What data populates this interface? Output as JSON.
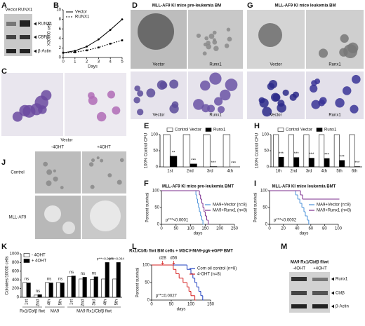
{
  "figure": {
    "panel_letters": [
      "A",
      "B",
      "C",
      "D",
      "E",
      "F",
      "G",
      "H",
      "I",
      "J",
      "K",
      "L",
      "M"
    ],
    "blot_a": {
      "lanes": [
        "Vector",
        "RUNX1"
      ],
      "bands": [
        "RUNX1",
        "CBFβ",
        "β-Actin"
      ]
    },
    "photo_c": {
      "caption": "Vector"
    },
    "photo_d": {
      "title": "MLL-AF9 KI mice pre-leukemia BM",
      "captions": [
        "Vector",
        "Runx1",
        "Vector",
        "Runx1"
      ]
    },
    "photo_g": {
      "title": "MLL-AF9 KI mice leukemia BM",
      "captions": [
        "Vector",
        "Runx1",
        "Vector",
        "Runx1"
      ]
    },
    "photo_j": {
      "columns": [
        "-4OHT",
        "+4OHT"
      ],
      "rows": [
        "Control",
        "MLL-AF9"
      ]
    },
    "blot_m": {
      "title": "MA9 Rx1/Cbfβ fl/wt",
      "lanes": [
        "-4OHT",
        "+4OHT"
      ],
      "bands": [
        "Runx1",
        "Cbfβ",
        "β-Actin"
      ]
    }
  },
  "chart_data": [
    {
      "type": "line",
      "xlabel": "Days",
      "ylabel": "X30000 cells",
      "x": [
        0,
        1,
        2,
        3,
        4,
        5
      ],
      "xlim": [
        0,
        5
      ],
      "xticks": [
        0,
        1,
        2,
        3,
        4,
        5
      ],
      "ylim": [
        0,
        10
      ],
      "yticks": [
        0,
        2,
        4,
        6,
        8,
        10
      ],
      "legend": "upper left",
      "series": [
        {
          "name": "Vector",
          "color": "#000000",
          "dash": false,
          "values": [
            1,
            1.4,
            2.3,
            3.8,
            5.8,
            8.0
          ]
        },
        {
          "name": "RUNX1",
          "color": "#000000",
          "dash": true,
          "values": [
            1,
            1.1,
            1.5,
            2.1,
            2.9,
            3.6
          ]
        }
      ]
    },
    {
      "type": "bar",
      "ylabel": "100% Control CFU",
      "categories": [
        "1st",
        "2nd",
        "3rd",
        "4th"
      ],
      "ylim": [
        0,
        100
      ],
      "yticks": [
        0,
        50,
        100
      ],
      "legend": "top",
      "series": [
        {
          "name": "Control Vector",
          "color": "#ffffff",
          "values": [
            100,
            100,
            100,
            100
          ]
        },
        {
          "name": "Runx1",
          "color": "#000000",
          "values": [
            33,
            9,
            1,
            0
          ]
        }
      ],
      "significance": [
        "**",
        "***",
        "***",
        "***"
      ]
    },
    {
      "type": "bar",
      "ylabel": "100% Control CFU",
      "categories": [
        "1th",
        "2nd",
        "3rd",
        "4th",
        "5th",
        "6th"
      ],
      "ylim": [
        0,
        100
      ],
      "yticks": [
        0,
        50,
        100
      ],
      "legend": "top",
      "series": [
        {
          "name": "Control Vector",
          "color": "#ffffff",
          "values": [
            100,
            100,
            100,
            100,
            100,
            100
          ]
        },
        {
          "name": "Runx1",
          "color": "#000000",
          "values": [
            30,
            29,
            27,
            26,
            20,
            1
          ]
        }
      ],
      "significance": [
        "***",
        "***",
        "***",
        "***",
        "***",
        "***"
      ]
    },
    {
      "type": "step",
      "title": "MLL-AF9 KI mice pre-leukemia BMT",
      "xlabel": "days",
      "ylabel": "Percent survival",
      "xlim": [
        0,
        250
      ],
      "xticks": [
        0,
        50,
        100,
        150,
        200,
        250
      ],
      "ylim": [
        0,
        100
      ],
      "yticks": [
        0,
        50,
        100
      ],
      "legend": "right",
      "annotation": "p***<0.0001",
      "series": [
        {
          "name": "MA9+Vector (n=8)",
          "color": "#4a90d9",
          "x": [
            0,
            118,
            121,
            124,
            127,
            130,
            134,
            138,
            142
          ],
          "values": [
            100,
            87.5,
            75,
            62.5,
            50,
            37.5,
            25,
            12.5,
            0
          ]
        },
        {
          "name": "MA9+Runx1 (n=8)",
          "color": "#7b2d8e",
          "x": [
            0,
            130,
            134,
            138,
            142,
            146,
            150,
            155,
            160
          ],
          "values": [
            100,
            87.5,
            75,
            62.5,
            50,
            37.5,
            25,
            12.5,
            0
          ]
        }
      ]
    },
    {
      "type": "step",
      "title": "MLL-AF9 KI mice leukemia BMT",
      "xlabel": "days",
      "ylabel": "Percent survival",
      "xlim": [
        0,
        100
      ],
      "xticks": [
        0,
        20,
        40,
        60,
        80,
        100
      ],
      "ylim": [
        0,
        100
      ],
      "yticks": [
        0,
        50,
        100
      ],
      "legend": "right",
      "annotation": "p***<0.0002",
      "series": [
        {
          "name": "MA9+Vector (n=8)",
          "color": "#4a90d9",
          "x": [
            0,
            38,
            41,
            44,
            47,
            50,
            52,
            55,
            57
          ],
          "values": [
            100,
            87.5,
            75,
            62.5,
            50,
            37.5,
            25,
            12.5,
            0
          ]
        },
        {
          "name": "MA9+Runx1 (n=8)",
          "color": "#7b2d8e",
          "x": [
            0,
            45,
            48,
            100
          ],
          "values": [
            100,
            87.5,
            75,
            75
          ]
        }
      ]
    },
    {
      "type": "bar",
      "ylabel": "Colonies/10000 cells",
      "ylim": [
        0,
        1000
      ],
      "yticks": [
        0,
        200,
        400,
        600,
        800,
        1000
      ],
      "legend": "upper left",
      "xtick_rotation": 90,
      "groups": [
        {
          "label": "Rx1/Cbfβ flwt",
          "categories": [
            "1st",
            "2nd"
          ]
        },
        {
          "label": "MA9",
          "categories": [
            "4th",
            "5th"
          ]
        },
        {
          "label": "MA9 Rx1/Cbfβ flwt",
          "categories": [
            "1st",
            "2nd",
            "3rd",
            "4th",
            "5th"
          ]
        }
      ],
      "series": [
        {
          "name": "- 4OHT",
          "color": "#ffffff",
          "values": [
            340,
            50,
            340,
            340,
            480,
            420,
            410,
            420,
            420
          ]
        },
        {
          "name": "+ 4OHT",
          "color": "#000000",
          "values": [
            330,
            60,
            330,
            330,
            490,
            460,
            470,
            800,
            800
          ]
        }
      ],
      "significance": [
        "ns",
        "ns",
        "ns",
        "ns",
        "ns",
        "ns",
        "ns",
        "p***=0.0001",
        "p***=0.004"
      ]
    },
    {
      "type": "step",
      "title": "Rx1/Cbfb flwt BM cells + MSCV-MA9-pgk-eGFP BMT",
      "xlabel": "days",
      "ylabel": "Percent survival",
      "xlim": [
        0,
        150
      ],
      "xticks": [
        0,
        50,
        100,
        150
      ],
      "ylim": [
        0,
        100
      ],
      "yticks": [
        0,
        50,
        100
      ],
      "legend": "upper right",
      "annotation": "p**=0.0027",
      "events": [
        {
          "value": 28,
          "label": "d28"
        },
        {
          "value": 56,
          "label": "d56"
        }
      ],
      "series": [
        {
          "name": "Corn oil control (n=8)",
          "color": "#1f3fbf",
          "x": [
            0,
            90,
            100,
            105,
            110,
            115,
            120,
            125,
            130
          ],
          "values": [
            100,
            87.5,
            75,
            62.5,
            50,
            37.5,
            25,
            12.5,
            0
          ]
        },
        {
          "name": "4-OHT (n=8)",
          "color": "#d62020",
          "x": [
            0,
            55,
            62,
            70,
            80,
            90,
            95,
            100,
            110
          ],
          "values": [
            100,
            87.5,
            75,
            62.5,
            50,
            37.5,
            25,
            12.5,
            0
          ]
        }
      ]
    }
  ]
}
